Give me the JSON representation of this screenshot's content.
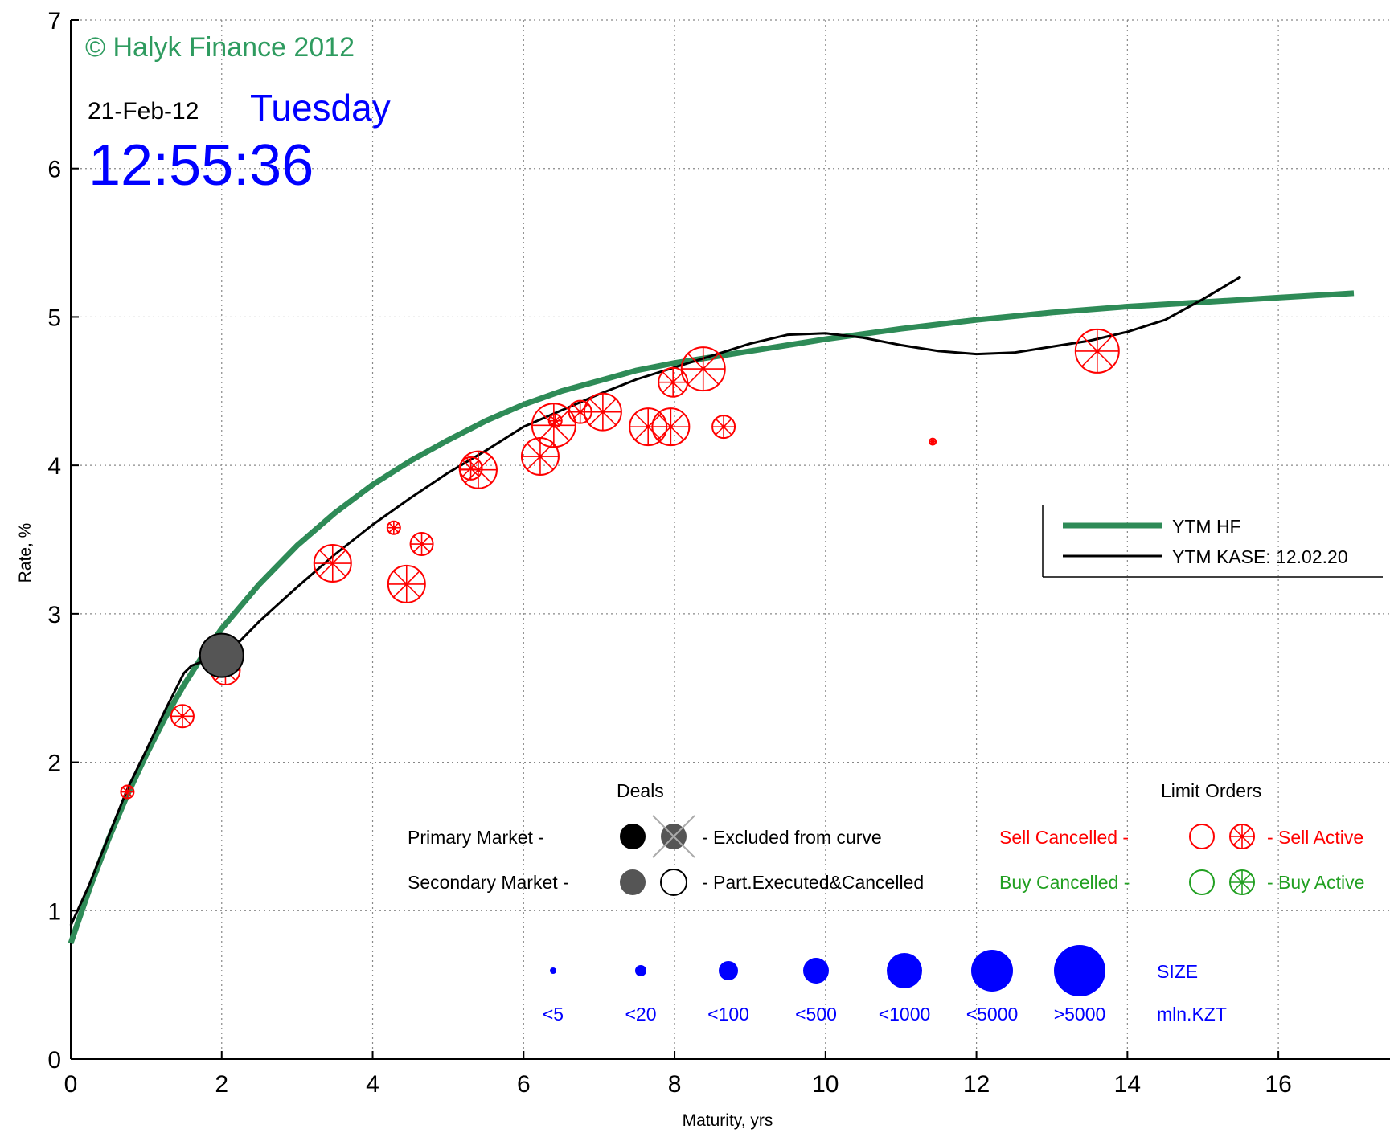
{
  "header": {
    "copyright": "© Halyk Finance 2012",
    "date": "21-Feb-12",
    "weekday": "Tuesday",
    "time": "12:55:36"
  },
  "colors": {
    "hf_curve": "#2e8b57",
    "kase_curve": "#000000",
    "sell": "#ff0000",
    "buy": "#22a022",
    "size": "#0000ff",
    "header_blue": "#0000ff",
    "copyright": "#2e9b5f",
    "grid": "#888888"
  },
  "chart_data": {
    "type": "scatter",
    "xlabel": "Maturity, yrs",
    "ylabel": "Rate, %",
    "xlim": [
      0,
      17
    ],
    "ylim": [
      0,
      7
    ],
    "xticks": [
      0,
      2,
      4,
      6,
      8,
      10,
      12,
      14,
      16
    ],
    "yticks": [
      0,
      1,
      2,
      3,
      4,
      5,
      6,
      7
    ],
    "grid": true,
    "series": [
      {
        "name": "YTM HF",
        "kind": "line",
        "color": "#2e8b57",
        "x": [
          0,
          0.25,
          0.5,
          0.75,
          1,
          1.25,
          1.5,
          1.75,
          2,
          2.5,
          3,
          3.5,
          4,
          4.5,
          5,
          5.5,
          6,
          6.5,
          7,
          7.5,
          8,
          8.5,
          9,
          9.5,
          10,
          11,
          12,
          13,
          14,
          15,
          16,
          17
        ],
        "y": [
          0.78,
          1.15,
          1.48,
          1.78,
          2.05,
          2.3,
          2.52,
          2.72,
          2.9,
          3.2,
          3.46,
          3.68,
          3.87,
          4.03,
          4.17,
          4.3,
          4.41,
          4.5,
          4.57,
          4.64,
          4.69,
          4.73,
          4.77,
          4.81,
          4.85,
          4.92,
          4.98,
          5.03,
          5.07,
          5.1,
          5.13,
          5.16
        ]
      },
      {
        "name": "YTM KASE: 12.02.20",
        "kind": "line",
        "color": "#000000",
        "x": [
          0,
          0.25,
          0.5,
          0.75,
          1,
          1.25,
          1.5,
          1.6,
          1.75,
          2,
          2.25,
          2.5,
          3,
          3.5,
          4,
          4.5,
          5,
          5.5,
          6,
          6.5,
          7,
          7.5,
          8,
          8.5,
          9,
          9.5,
          10,
          10.5,
          11,
          11.5,
          12,
          12.5,
          13,
          13.5,
          14,
          14.5,
          15,
          15.5
        ],
        "y": [
          0.9,
          1.18,
          1.5,
          1.82,
          2.08,
          2.35,
          2.6,
          2.65,
          2.68,
          2.7,
          2.82,
          2.95,
          3.18,
          3.4,
          3.6,
          3.78,
          3.95,
          4.1,
          4.26,
          4.37,
          4.48,
          4.58,
          4.66,
          4.74,
          4.82,
          4.88,
          4.89,
          4.86,
          4.81,
          4.77,
          4.75,
          4.76,
          4.8,
          4.84,
          4.9,
          4.98,
          5.12,
          5.27
        ]
      }
    ],
    "sell_active_orders": [
      {
        "x": 0.75,
        "y": 1.8,
        "size": "<20"
      },
      {
        "x": 1.48,
        "y": 2.31,
        "size": "<100"
      },
      {
        "x": 2.05,
        "y": 2.62,
        "size": "<500"
      },
      {
        "x": 2.05,
        "y": 2.68,
        "size": "<100"
      },
      {
        "x": 3.47,
        "y": 3.34,
        "size": "<1000"
      },
      {
        "x": 4.28,
        "y": 3.58,
        "size": "<20"
      },
      {
        "x": 4.45,
        "y": 3.2,
        "size": "<1000"
      },
      {
        "x": 4.65,
        "y": 3.47,
        "size": "<100"
      },
      {
        "x": 5.3,
        "y": 3.98,
        "size": "<100"
      },
      {
        "x": 5.4,
        "y": 3.97,
        "size": "<1000"
      },
      {
        "x": 6.22,
        "y": 4.06,
        "size": "<1000"
      },
      {
        "x": 6.4,
        "y": 4.27,
        "size": "<5000"
      },
      {
        "x": 6.42,
        "y": 4.3,
        "size": "<20"
      },
      {
        "x": 6.75,
        "y": 4.36,
        "size": "<100"
      },
      {
        "x": 7.05,
        "y": 4.36,
        "size": "<1000"
      },
      {
        "x": 7.65,
        "y": 4.26,
        "size": "<1000"
      },
      {
        "x": 7.95,
        "y": 4.26,
        "size": "<1000"
      },
      {
        "x": 7.98,
        "y": 4.56,
        "size": "<500"
      },
      {
        "x": 8.38,
        "y": 4.65,
        "size": "<5000"
      },
      {
        "x": 8.65,
        "y": 4.26,
        "size": "<100"
      },
      {
        "x": 11.42,
        "y": 4.16,
        "size": "<5"
      },
      {
        "x": 13.6,
        "y": 4.77,
        "size": "<5000"
      }
    ],
    "deals": [
      {
        "x": 2.0,
        "y": 2.72,
        "market": "Secondary",
        "size": "<5000"
      }
    ],
    "legend_lines": [
      "YTM HF",
      "YTM KASE: 12.02.20"
    ],
    "legend_lines_position": "right"
  },
  "key": {
    "deals_title": "Deals",
    "limit_orders_title": "Limit Orders",
    "primary_market": "Primary Market  -",
    "secondary_market": "Secondary Market -",
    "excluded": "- Excluded from curve",
    "part_executed": "- Part.Executed&Cancelled",
    "sell_cancelled": "Sell Cancelled -",
    "buy_cancelled": "Buy Cancelled -",
    "sell_active": "- Sell Active",
    "buy_active": "- Buy Active",
    "size_title": "SIZE",
    "size_unit": "mln.KZT",
    "size_labels": [
      "<5",
      "<20",
      "<100",
      "<500",
      "<1000",
      "<5000",
      ">5000"
    ]
  }
}
